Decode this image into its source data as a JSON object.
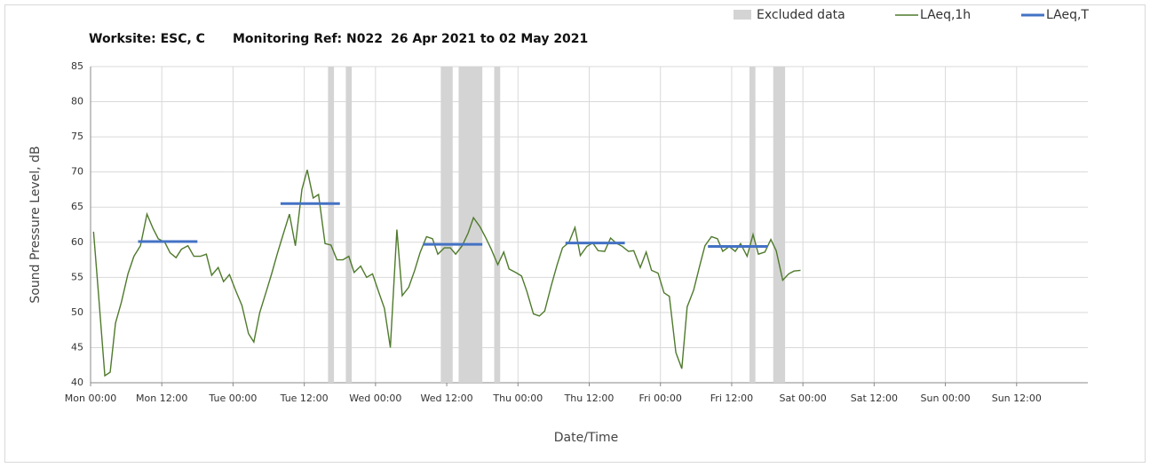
{
  "chart_data": {
    "type": "line",
    "title": [
      "Worksite: ESC, C",
      "Monitoring Ref: N022",
      "26 Apr 2021 to 02 May 2021"
    ],
    "x_label": "Date/Time",
    "y_label": "Sound Pressure Level, dB",
    "xlim": [
      0,
      168
    ],
    "xticks": [
      {
        "value": 0,
        "label": "Mon 00:00"
      },
      {
        "value": 12,
        "label": "Mon 12:00"
      },
      {
        "value": 24,
        "label": "Tue 00:00"
      },
      {
        "value": 36,
        "label": "Tue 12:00"
      },
      {
        "value": 48,
        "label": "Wed 00:00"
      },
      {
        "value": 60,
        "label": "Wed 12:00"
      },
      {
        "value": 72,
        "label": "Thu 00:00"
      },
      {
        "value": 84,
        "label": "Thu 12:00"
      },
      {
        "value": 96,
        "label": "Fri 00:00"
      },
      {
        "value": 108,
        "label": "Fri 12:00"
      },
      {
        "value": 120,
        "label": "Sat 00:00"
      },
      {
        "value": 132,
        "label": "Sat 12:00"
      },
      {
        "value": 144,
        "label": "Sun 00:00"
      },
      {
        "value": 156,
        "label": "Sun 12:00"
      }
    ],
    "ylim": [
      40,
      85
    ],
    "yticks": [
      40,
      45,
      50,
      55,
      60,
      65,
      70,
      75,
      80,
      85
    ],
    "grid": true,
    "excluded": {
      "name": "Excluded data",
      "color": "#d4d4d4",
      "ranges": [
        [
          40,
          41
        ],
        [
          43,
          44
        ],
        [
          59,
          61
        ],
        [
          62,
          66
        ],
        [
          68,
          69
        ],
        [
          111,
          112
        ],
        [
          115,
          117
        ]
      ]
    },
    "series": [
      {
        "name": "LAeq,1h",
        "color": "#4f7a2c",
        "x": [
          0.5,
          1.3,
          2.4,
          3.3,
          4.2,
          5.2,
          6.3,
          7.3,
          8.4,
          9.5,
          10.5,
          11.4,
          12.5,
          13.4,
          14.4,
          15.3,
          16.4,
          17.4,
          18.5,
          19.5,
          20.4,
          21.5,
          22.4,
          23.4,
          24.5,
          25.5,
          26.6,
          27.5,
          28.5,
          29.6,
          30.5,
          31.5,
          32.4,
          33.5,
          34.5,
          35.6,
          36.5,
          37.5,
          38.4,
          39.5,
          40.5,
          41.5,
          42.5,
          43.5,
          44.4,
          45.5,
          46.5,
          47.5,
          48.5,
          49.5,
          50.5,
          51.6,
          52.5,
          53.6,
          54.6,
          55.5,
          56.6,
          57.6,
          58.5,
          59.6,
          60.6,
          61.5,
          62.6,
          63.6,
          64.5,
          65.6,
          66.6,
          67.5,
          68.6,
          69.6,
          70.5,
          71.6,
          72.6,
          73.5,
          74.6,
          75.6,
          76.5,
          77.6,
          78.6,
          79.5,
          80.6,
          81.6,
          82.5,
          83.6,
          84.6,
          85.5,
          86.6,
          87.6,
          88.5,
          89.6,
          90.6,
          91.5,
          92.6,
          93.6,
          94.5,
          95.6,
          96.6,
          97.5,
          98.6,
          99.6,
          100.5,
          101.6,
          102.6,
          103.5,
          104.6,
          105.6,
          106.5,
          107.6,
          108.6,
          109.5,
          110.6,
          111.6,
          112.5,
          113.6,
          114.6,
          115.5,
          116.6,
          117.6,
          118.5,
          119.6
        ],
        "values": [
          61.5,
          53,
          41,
          41.5,
          48.5,
          51.5,
          55.5,
          58,
          59.5,
          64,
          62,
          60.5,
          60,
          58.5,
          57.8,
          59,
          59.5,
          58,
          58,
          58.3,
          55.3,
          56.4,
          54.4,
          55.4,
          53,
          51,
          47,
          45.8,
          50,
          53,
          55.5,
          58.5,
          61,
          64,
          59.5,
          67.5,
          70.3,
          66.3,
          66.8,
          59.8,
          59.6,
          57.5,
          57.5,
          58,
          55.7,
          56.6,
          55,
          55.5,
          53,
          50.6,
          45,
          61.8,
          52.4,
          53.6,
          56,
          58.5,
          60.8,
          60.5,
          58.3,
          59.2,
          59.2,
          58.3,
          59.5,
          61.3,
          63.5,
          62.2,
          60.6,
          59,
          56.8,
          58.6,
          56.2,
          55.7,
          55.2,
          53,
          49.8,
          49.5,
          50.2,
          53.8,
          56.8,
          59.2,
          60,
          62.1,
          58.1,
          59.4,
          59.9,
          58.8,
          58.7,
          60.6,
          59.9,
          59.4,
          58.7,
          58.8,
          56.4,
          58.6,
          56,
          55.6,
          52.8,
          52.3,
          44.3,
          42,
          50.8,
          53.2,
          56.6,
          59.5,
          60.8,
          60.5,
          58.7,
          59.4,
          58.7,
          59.8,
          58,
          61.1,
          58.3,
          58.6,
          60.4,
          58.8,
          54.6,
          55.5,
          55.9,
          56
        ]
      },
      {
        "name": "LAeq,T",
        "color": "#4472c4",
        "x_ranges": [
          [
            8,
            18
          ],
          [
            32,
            42
          ],
          [
            56,
            66
          ],
          [
            80,
            90
          ],
          [
            104,
            114
          ]
        ],
        "values": [
          60.1,
          65.5,
          59.7,
          59.9,
          59.4
        ]
      }
    ]
  }
}
